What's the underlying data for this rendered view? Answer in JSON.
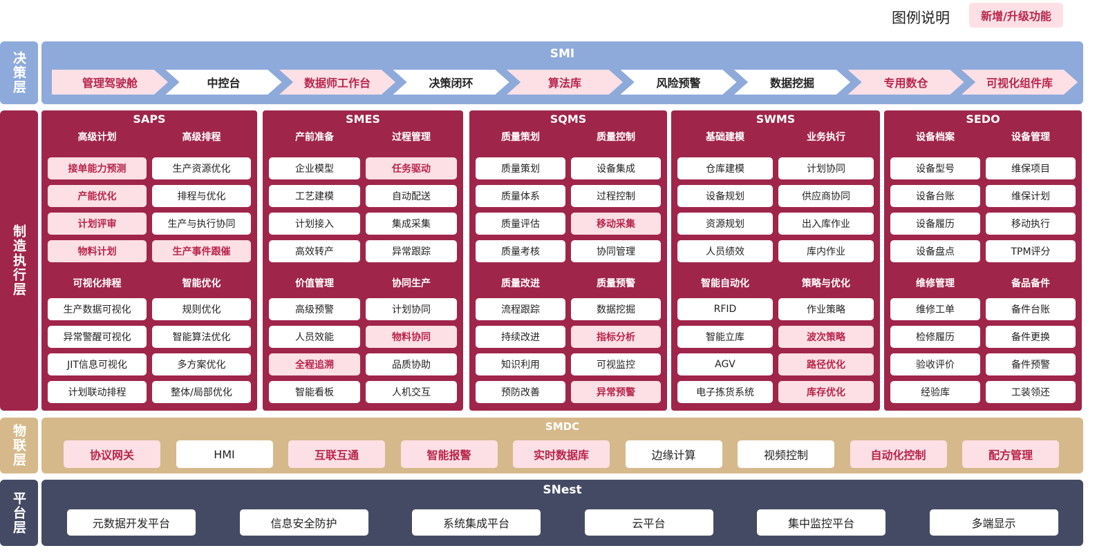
{
  "legend": {
    "label": "图例说明",
    "badge": "新增/升级功能"
  },
  "colors": {
    "decision": "#8eaadb",
    "execution": "#a0254b",
    "iot": "#d6b98a",
    "platform": "#454a64",
    "highlight_bg": "#fde0e5",
    "highlight_text": "#b8254c"
  },
  "layers": {
    "decision": {
      "side": "决策层",
      "title": "SMI",
      "items": [
        {
          "label": "管理驾驶舱",
          "new": true
        },
        {
          "label": "中控台",
          "new": false
        },
        {
          "label": "数据师工作台",
          "new": true
        },
        {
          "label": "决策闭环",
          "new": false
        },
        {
          "label": "算法库",
          "new": true
        },
        {
          "label": "风险预警",
          "new": false
        },
        {
          "label": "数据挖掘",
          "new": false
        },
        {
          "label": "专用数仓",
          "new": true
        },
        {
          "label": "可视化组件库",
          "new": true
        }
      ]
    },
    "execution": {
      "side": "制造执行层",
      "modules": [
        {
          "title": "SAPS",
          "groups": [
            {
              "header": "高级计划",
              "items": [
                {
                  "label": "接单能力预测",
                  "new": true
                },
                {
                  "label": "产能优化",
                  "new": true
                },
                {
                  "label": "计划评审",
                  "new": true
                },
                {
                  "label": "物料计划",
                  "new": true
                }
              ]
            },
            {
              "header": "高级排程",
              "items": [
                {
                  "label": "生产资源优化",
                  "new": false
                },
                {
                  "label": "排程与优化",
                  "new": false
                },
                {
                  "label": "生产与执行协同",
                  "new": false
                },
                {
                  "label": "生产事件跟催",
                  "new": true
                }
              ]
            },
            {
              "header": "可视化排程",
              "items": [
                {
                  "label": "生产数据可视化",
                  "new": false
                },
                {
                  "label": "异常警醒可视化",
                  "new": false
                },
                {
                  "label": "JIT信息可视化",
                  "new": false
                },
                {
                  "label": "计划联动排程",
                  "new": false
                }
              ]
            },
            {
              "header": "智能优化",
              "items": [
                {
                  "label": "规则优化",
                  "new": false
                },
                {
                  "label": "智能算法优化",
                  "new": false
                },
                {
                  "label": "多方案优化",
                  "new": false
                },
                {
                  "label": "整体/局部优化",
                  "new": false
                }
              ]
            }
          ]
        },
        {
          "title": "SMES",
          "groups": [
            {
              "header": "产前准备",
              "items": [
                {
                  "label": "企业模型",
                  "new": false
                },
                {
                  "label": "工艺建模",
                  "new": false
                },
                {
                  "label": "计划接入",
                  "new": false
                },
                {
                  "label": "高效转产",
                  "new": false
                }
              ]
            },
            {
              "header": "过程管理",
              "items": [
                {
                  "label": "任务驱动",
                  "new": true
                },
                {
                  "label": "自动配送",
                  "new": false
                },
                {
                  "label": "集成采集",
                  "new": false
                },
                {
                  "label": "异常跟踪",
                  "new": false
                }
              ]
            },
            {
              "header": "价值管理",
              "items": [
                {
                  "label": "高级预警",
                  "new": false
                },
                {
                  "label": "人员效能",
                  "new": false
                },
                {
                  "label": "全程追溯",
                  "new": true
                },
                {
                  "label": "智能看板",
                  "new": false
                }
              ]
            },
            {
              "header": "协同生产",
              "items": [
                {
                  "label": "计划协同",
                  "new": false
                },
                {
                  "label": "物料协同",
                  "new": true
                },
                {
                  "label": "品质协助",
                  "new": false
                },
                {
                  "label": "人机交互",
                  "new": false
                }
              ]
            }
          ]
        },
        {
          "title": "SQMS",
          "groups": [
            {
              "header": "质量策划",
              "items": [
                {
                  "label": "质量策划",
                  "new": false
                },
                {
                  "label": "质量体系",
                  "new": false
                },
                {
                  "label": "质量评估",
                  "new": false
                },
                {
                  "label": "质量考核",
                  "new": false
                }
              ]
            },
            {
              "header": "质量控制",
              "items": [
                {
                  "label": "设备集成",
                  "new": false
                },
                {
                  "label": "过程控制",
                  "new": false
                },
                {
                  "label": "移动采集",
                  "new": true
                },
                {
                  "label": "协同管理",
                  "new": false
                }
              ]
            },
            {
              "header": "质量改进",
              "items": [
                {
                  "label": "流程跟踪",
                  "new": false
                },
                {
                  "label": "持续改进",
                  "new": false
                },
                {
                  "label": "知识利用",
                  "new": false
                },
                {
                  "label": "预防改善",
                  "new": false
                }
              ]
            },
            {
              "header": "质量预警",
              "items": [
                {
                  "label": "数据挖掘",
                  "new": false
                },
                {
                  "label": "指标分析",
                  "new": true
                },
                {
                  "label": "可视监控",
                  "new": false
                },
                {
                  "label": "异常预警",
                  "new": true
                }
              ]
            }
          ]
        },
        {
          "title": "SWMS",
          "groups": [
            {
              "header": "基础建模",
              "items": [
                {
                  "label": "仓库建模",
                  "new": false
                },
                {
                  "label": "设备规划",
                  "new": false
                },
                {
                  "label": "资源规划",
                  "new": false
                },
                {
                  "label": "人员绩效",
                  "new": false
                }
              ]
            },
            {
              "header": "业务执行",
              "items": [
                {
                  "label": "计划协同",
                  "new": false
                },
                {
                  "label": "供应商协同",
                  "new": false
                },
                {
                  "label": "出入库作业",
                  "new": false
                },
                {
                  "label": "库内作业",
                  "new": false
                }
              ]
            },
            {
              "header": "智能自动化",
              "items": [
                {
                  "label": "RFID",
                  "new": false
                },
                {
                  "label": "智能立库",
                  "new": false
                },
                {
                  "label": "AGV",
                  "new": false
                },
                {
                  "label": "电子拣货系统",
                  "new": false
                }
              ]
            },
            {
              "header": "策略与优化",
              "items": [
                {
                  "label": "作业策略",
                  "new": false
                },
                {
                  "label": "波次策略",
                  "new": true
                },
                {
                  "label": "路径优化",
                  "new": true
                },
                {
                  "label": "库存优化",
                  "new": true
                }
              ]
            }
          ]
        },
        {
          "title": "SEDO",
          "groups": [
            {
              "header": "设备档案",
              "items": [
                {
                  "label": "设备型号",
                  "new": false
                },
                {
                  "label": "设备台账",
                  "new": false
                },
                {
                  "label": "设备履历",
                  "new": false
                },
                {
                  "label": "设备盘点",
                  "new": false
                }
              ]
            },
            {
              "header": "设备管理",
              "items": [
                {
                  "label": "维保项目",
                  "new": false
                },
                {
                  "label": "维保计划",
                  "new": false
                },
                {
                  "label": "移动执行",
                  "new": false
                },
                {
                  "label": "TPM评分",
                  "new": false
                }
              ]
            },
            {
              "header": "维修管理",
              "items": [
                {
                  "label": "维修工单",
                  "new": false
                },
                {
                  "label": "检修履历",
                  "new": false
                },
                {
                  "label": "验收评价",
                  "new": false
                },
                {
                  "label": "经验库",
                  "new": false
                }
              ]
            },
            {
              "header": "备品备件",
              "items": [
                {
                  "label": "备件台账",
                  "new": false
                },
                {
                  "label": "备件更换",
                  "new": false
                },
                {
                  "label": "备件预警",
                  "new": false
                },
                {
                  "label": "工装领还",
                  "new": false
                }
              ]
            }
          ]
        }
      ]
    },
    "iot": {
      "side": "物联层",
      "title": "SMDC",
      "items": [
        {
          "label": "协议网关",
          "new": true
        },
        {
          "label": "HMI",
          "new": false
        },
        {
          "label": "互联互通",
          "new": true
        },
        {
          "label": "智能报警",
          "new": true
        },
        {
          "label": "实时数据库",
          "new": true
        },
        {
          "label": "边缘计算",
          "new": false
        },
        {
          "label": "视频控制",
          "new": false
        },
        {
          "label": "自动化控制",
          "new": true
        },
        {
          "label": "配方管理",
          "new": true
        }
      ]
    },
    "platform": {
      "side": "平台层",
      "title": "SNest",
      "items": [
        {
          "label": "元数据开发平台",
          "new": false
        },
        {
          "label": "信息安全防护",
          "new": false
        },
        {
          "label": "系统集成平台",
          "new": false
        },
        {
          "label": "云平台",
          "new": false
        },
        {
          "label": "集中监控平台",
          "new": false
        },
        {
          "label": "多端显示",
          "new": false
        }
      ]
    }
  }
}
